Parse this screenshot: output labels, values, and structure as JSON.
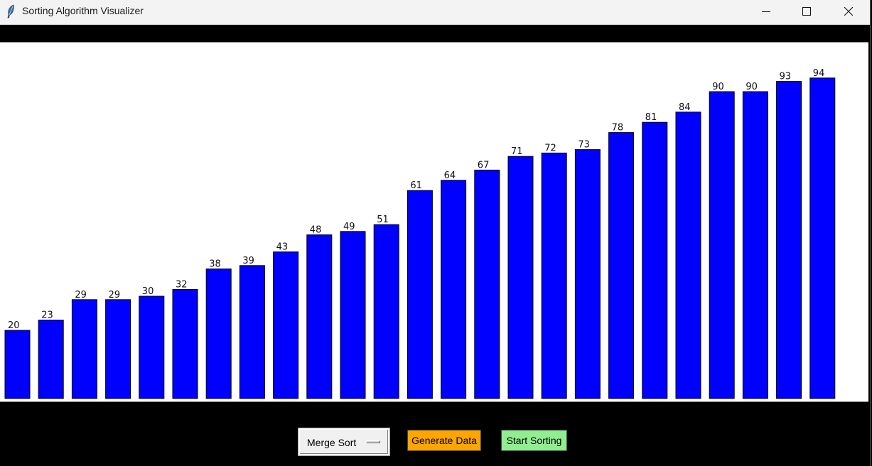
{
  "window": {
    "title": "Sorting Algorithm Visualizer",
    "icon": "feather-icon",
    "controls": [
      "minimize-icon",
      "maximize-icon",
      "close-icon"
    ]
  },
  "controls": {
    "algorithm_selected": "Merge Sort",
    "generate_label": "Generate Data",
    "start_label": "Start Sorting",
    "generate_color": "#ffa500",
    "start_color": "#90ee90"
  },
  "chart_data": {
    "type": "bar",
    "values": [
      20,
      23,
      29,
      29,
      30,
      32,
      38,
      39,
      43,
      48,
      49,
      51,
      61,
      64,
      67,
      71,
      72,
      73,
      78,
      81,
      84,
      90,
      90,
      93,
      94
    ],
    "bar_color": "#0000ff"
  }
}
